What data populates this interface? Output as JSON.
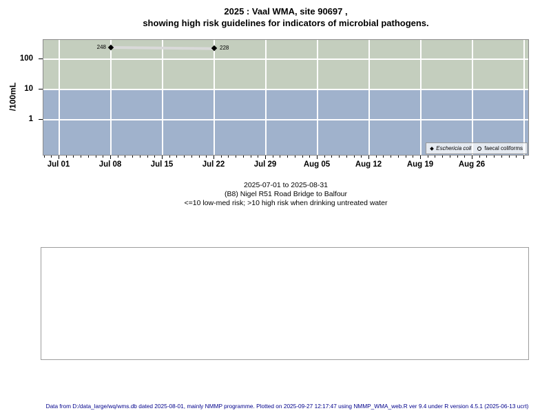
{
  "page": {
    "title_line1": "2025 : Vaal WMA, site 90697 ,",
    "title_line2": "showing high risk guidelines for indicators of microbial pathogens.",
    "footer": "Data from D:/data_large/wq/wms.db dated 2025-08-01, mainly NMMP programme. Plotted on 2025-09-27 12:17:47 using NMMP_WMA_web.R ver 9.4 under R version 4.5.1 (2025-06-13 ucrt)"
  },
  "caption": {
    "line1": "2025-07-01 to 2025-08-31",
    "line2": "(B8) Nigel R51 Road Bridge to Balfour",
    "line3": "<=10 low-med risk; >10 high risk when drinking untreated water"
  },
  "chart_data": {
    "type": "line",
    "title": "2025 : Vaal WMA, site 90697 , showing high risk guidelines for indicators of microbial pathogens.",
    "ylabel": "/100mL",
    "y_scale": "log10",
    "y_ticks": [
      100,
      10,
      1
    ],
    "x_tick_labels": [
      "Jul 01",
      "Jul 08",
      "Jul 15",
      "Jul 22",
      "Jul 29",
      "Aug 05",
      "Aug 12",
      "Aug 19",
      "Aug 26"
    ],
    "x_minor_tick_interval_days": 1,
    "x_range_label": "2025-07-01 to 2025-08-31",
    "risk_threshold": 10,
    "zones": [
      {
        "name": "high risk",
        "condition": ">10",
        "color": "#c4cebe"
      },
      {
        "name": "low-med risk",
        "condition": "<=10",
        "color": "#a0b2cc"
      }
    ],
    "grid": true,
    "legend_position": "bottom-right",
    "series": [
      {
        "name": "Eschericia coli",
        "marker": "filled-diamond",
        "label_style": "italic",
        "line_color": "#d9d9d9",
        "points": [
          {
            "x_label": "Jul 08",
            "x_day": 7,
            "value": 248,
            "label": "248",
            "label_side": "left"
          },
          {
            "x_label": "Jul 22",
            "x_day": 21,
            "value": 228,
            "label": "228",
            "label_side": "right"
          }
        ]
      },
      {
        "name": "faecal coliforms",
        "marker": "open-circle",
        "label_style": "normal",
        "points": []
      }
    ]
  }
}
